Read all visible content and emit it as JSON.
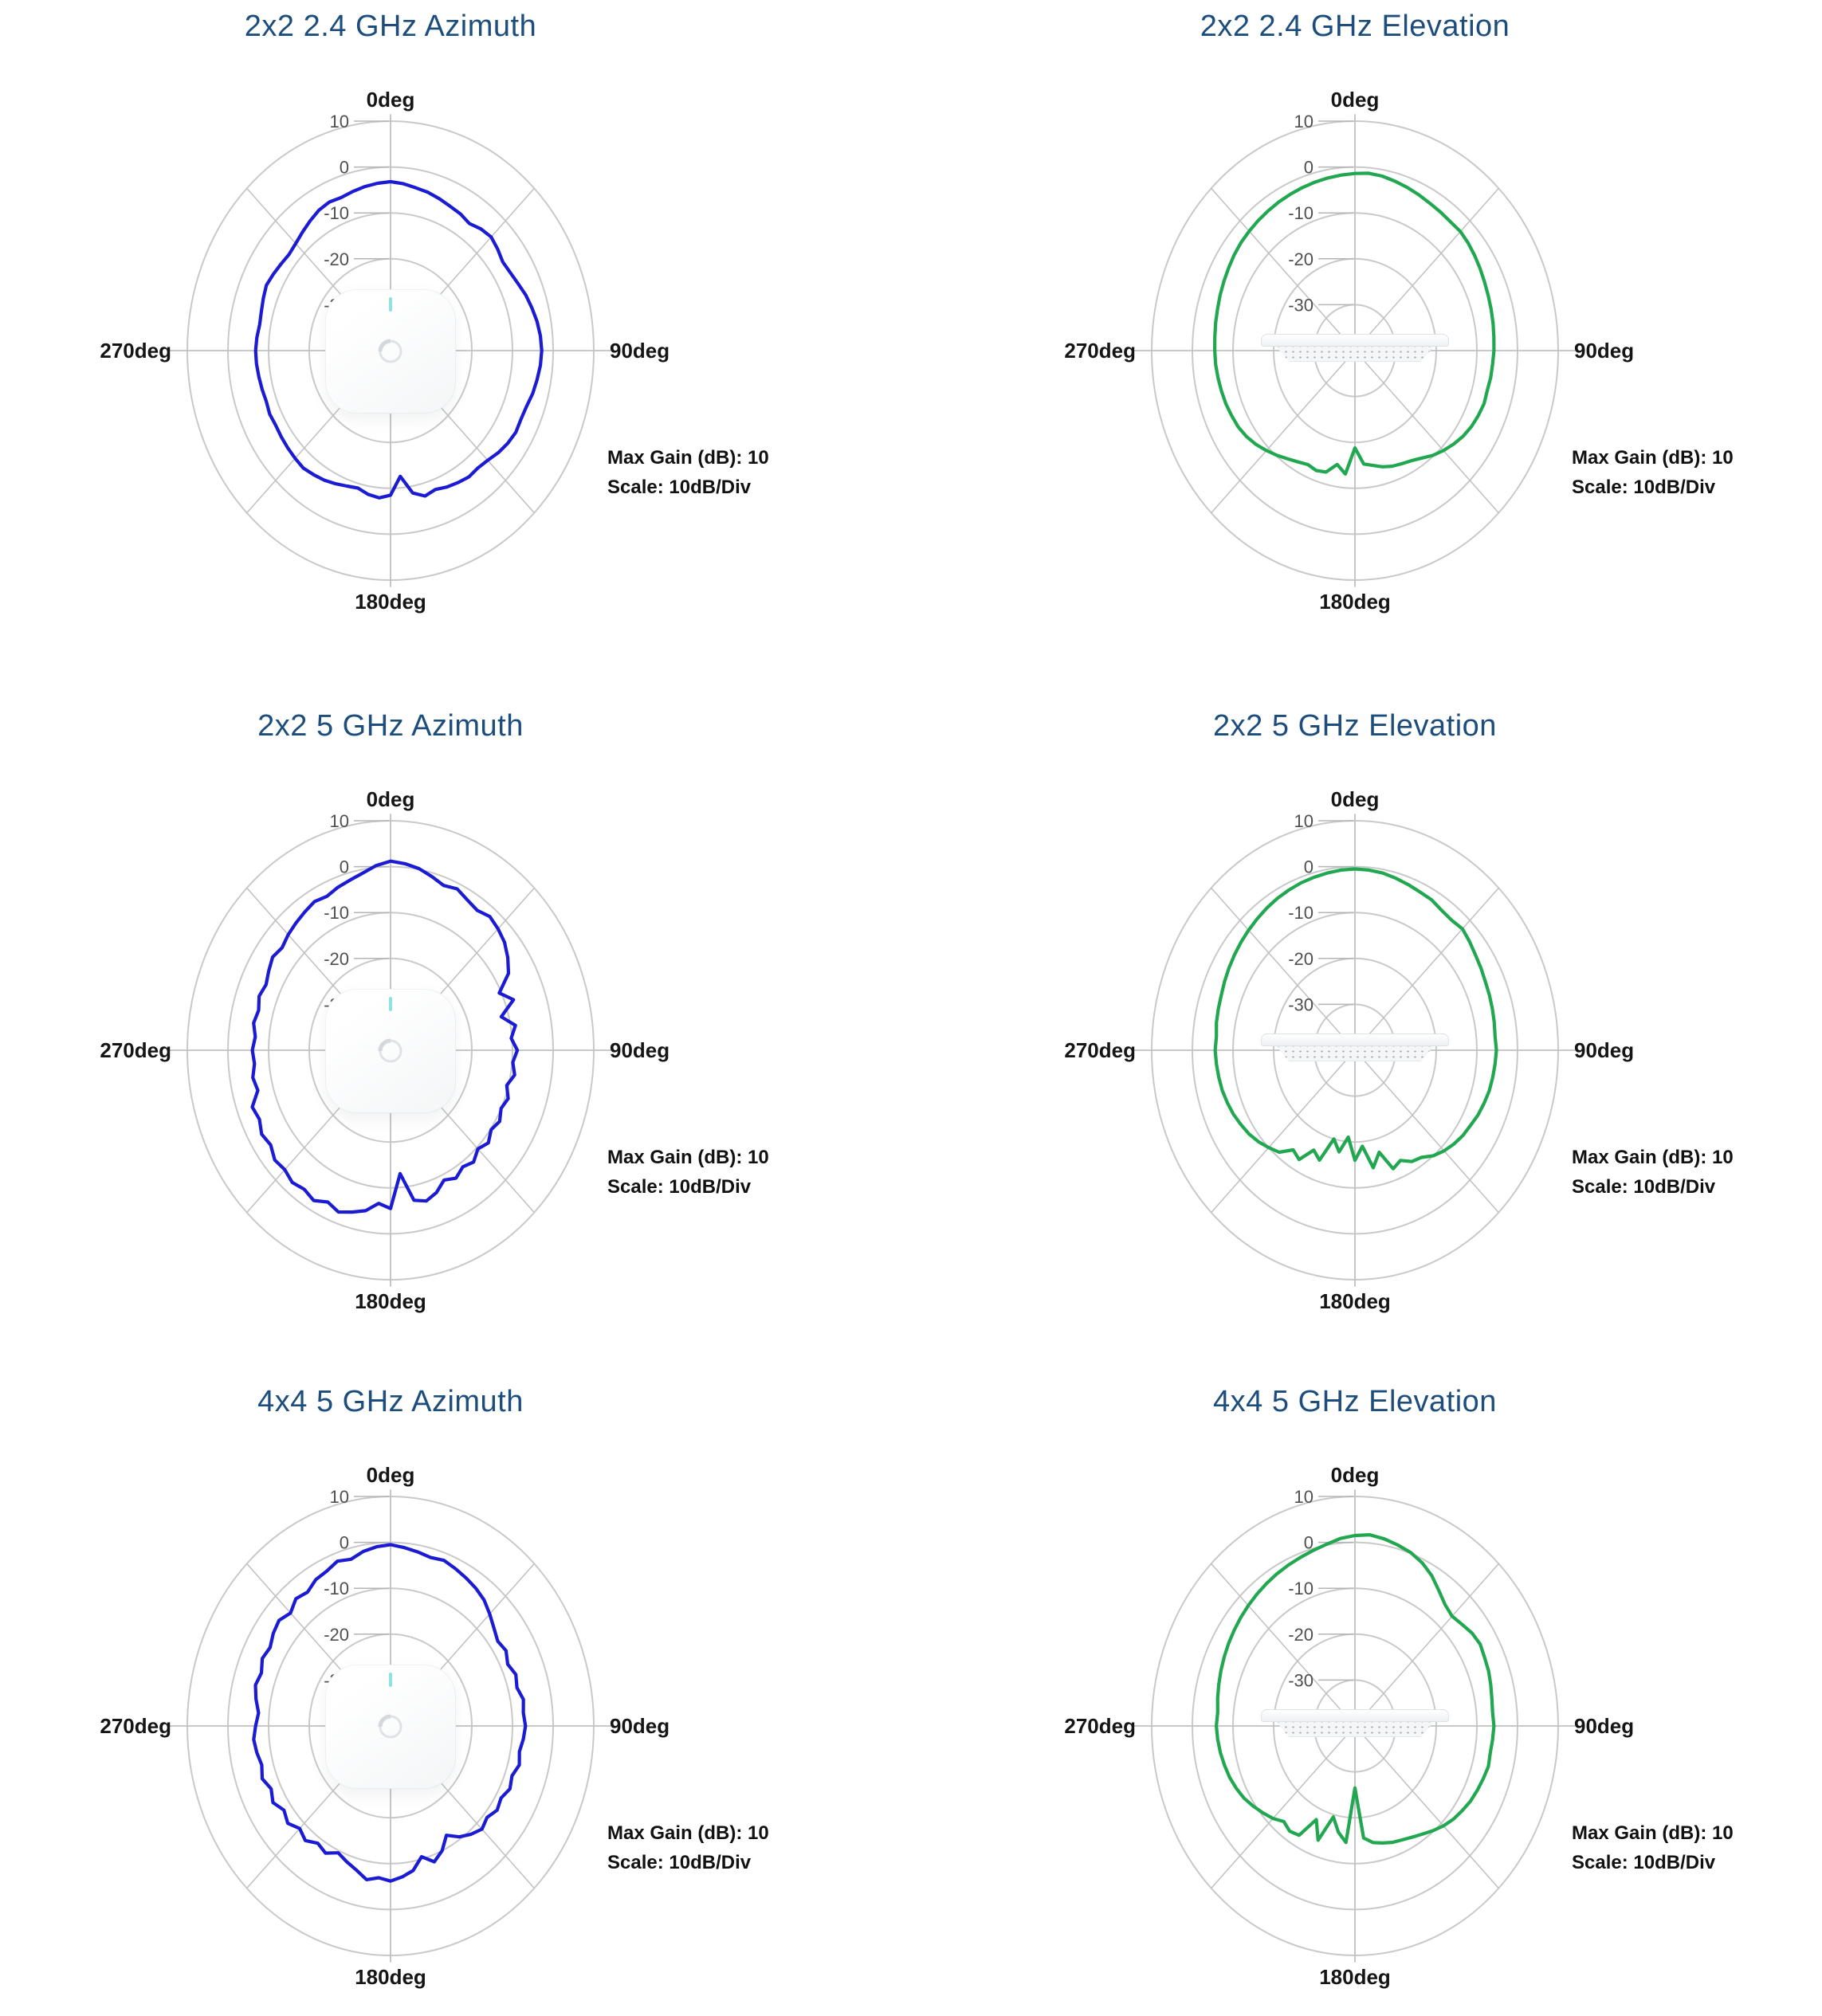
{
  "page": {
    "background": "#ffffff",
    "description": "Antenna radiation pattern sheet with six polar plots"
  },
  "colors": {
    "title": "#1c4d7c",
    "trace_blue": "#1b1bd4",
    "trace_green": "#21a74f",
    "grid_ring": "#c9c9c9",
    "grid_spoke": "#c0c0c0",
    "tick_text": "#4f4f4f",
    "deg_text": "#151515"
  },
  "axis": {
    "angle_labels": [
      "0deg",
      "90deg",
      "180deg",
      "270deg"
    ],
    "radial_ticks": [
      "10",
      "0",
      "-10",
      "-20",
      "-30"
    ]
  },
  "chart_data": {
    "type": "line",
    "subtype": "polar-radiation-pattern",
    "layout": "3 rows x 2 columns, azimuth (blue) left, elevation (green) right",
    "grid": "on",
    "radial_axis": {
      "min_dB": -40,
      "max_dB": 10,
      "ticks_dB": [
        10,
        0,
        -10,
        -20,
        -30
      ],
      "scale": "10dB/Div"
    },
    "angle_axis": {
      "labels": [
        "0deg",
        "90deg",
        "180deg",
        "270deg"
      ],
      "spokes_deg": 45
    },
    "angles_deg": [
      0,
      5,
      10,
      15,
      20,
      25,
      30,
      35,
      40,
      45,
      50,
      55,
      60,
      65,
      70,
      75,
      80,
      85,
      90,
      95,
      100,
      105,
      110,
      115,
      120,
      125,
      130,
      135,
      140,
      145,
      150,
      155,
      160,
      165,
      170,
      175,
      180,
      185,
      190,
      195,
      200,
      205,
      210,
      215,
      220,
      225,
      230,
      235,
      240,
      245,
      250,
      255,
      260,
      265,
      270,
      275,
      280,
      285,
      290,
      295,
      300,
      305,
      310,
      315,
      320,
      325,
      330,
      335,
      340,
      345,
      350,
      355
    ],
    "charts": [
      {
        "title": "2x2 2.4 GHz Azimuth",
        "orientation": "azimuth",
        "trace_color": "#1b1bd4",
        "center_image": "ap-top-view",
        "annotations": [
          "Max Gain (dB): 10",
          "Scale: 10dB/Div"
        ],
        "series_name": "Gain (dB)",
        "values_dB": [
          -3.2,
          -3.5,
          -4.0,
          -4.3,
          -4.8,
          -5.3,
          -5.6,
          -6.2,
          -5.4,
          -5.0,
          -5.6,
          -6.3,
          -6.0,
          -5.4,
          -4.6,
          -4.0,
          -3.4,
          -3.0,
          -2.8,
          -3.0,
          -3.4,
          -3.8,
          -4.4,
          -4.6,
          -4.4,
          -4.8,
          -5.4,
          -6.2,
          -6.6,
          -6.4,
          -6.8,
          -7.2,
          -7.8,
          -7.2,
          -8.5,
          -12.5,
          -8.5,
          -7.8,
          -8.2,
          -9.0,
          -8.6,
          -8.0,
          -7.4,
          -7.0,
          -6.6,
          -6.8,
          -7.0,
          -7.2,
          -7.4,
          -7.2,
          -7.5,
          -7.3,
          -7.1,
          -6.9,
          -6.8,
          -7.0,
          -7.3,
          -7.1,
          -6.7,
          -6.3,
          -6.7,
          -7.1,
          -7.4,
          -7.0,
          -6.3,
          -5.5,
          -4.7,
          -4.3,
          -4.5,
          -4.1,
          -3.7,
          -3.4
        ]
      },
      {
        "title": "2x2 2.4 GHz Elevation",
        "orientation": "elevation",
        "trace_color": "#21a74f",
        "center_image": "ap-side-view",
        "annotations": [
          "Max Gain (dB): 10",
          "Scale: 10dB/Div"
        ],
        "series_name": "Gain (dB)",
        "values_dB": [
          -1.4,
          -1.2,
          -1.4,
          -1.8,
          -2.2,
          -2.6,
          -3.0,
          -3.2,
          -3.4,
          -3.3,
          -3.6,
          -4.0,
          -4.4,
          -4.8,
          -5.1,
          -5.3,
          -5.5,
          -5.7,
          -5.8,
          -6.0,
          -6.1,
          -6.3,
          -6.2,
          -6.5,
          -6.9,
          -7.5,
          -8.3,
          -9.2,
          -10.2,
          -11.4,
          -12.3,
          -12.8,
          -13.2,
          -13.8,
          -14.6,
          -15.2,
          -18.8,
          -13.0,
          -14.8,
          -12.6,
          -12.2,
          -12.6,
          -12.0,
          -11.2,
          -10.2,
          -9.2,
          -8.2,
          -7.4,
          -6.8,
          -6.5,
          -6.2,
          -6.0,
          -5.8,
          -5.6,
          -5.5,
          -5.4,
          -5.2,
          -5.0,
          -4.7,
          -4.4,
          -4.1,
          -3.7,
          -3.4,
          -3.2,
          -3.0,
          -2.8,
          -2.6,
          -2.4,
          -2.2,
          -2.0,
          -1.8,
          -1.6
        ]
      },
      {
        "title": "2x2 5 GHz Azimuth",
        "orientation": "azimuth",
        "trace_color": "#1b1bd4",
        "center_image": "ap-top-view",
        "annotations": [
          "Max Gain (dB): 10",
          "Scale: 10dB/Div"
        ],
        "series_name": "Gain (dB)",
        "values_dB": [
          1.2,
          0.8,
          0.2,
          -0.8,
          -1.8,
          -1.2,
          -2.2,
          -2.8,
          -2.0,
          -2.6,
          -3.4,
          -4.8,
          -6.5,
          -10.5,
          -7.8,
          -11.8,
          -8.8,
          -10.2,
          -8.8,
          -9.8,
          -9.0,
          -10.4,
          -9.2,
          -10.0,
          -9.0,
          -9.8,
          -8.6,
          -9.6,
          -8.2,
          -9.0,
          -7.8,
          -8.8,
          -7.0,
          -6.0,
          -6.8,
          -13.0,
          -5.5,
          -6.5,
          -4.5,
          -3.5,
          -2.5,
          -3.5,
          -2.2,
          -3.0,
          -2.4,
          -3.2,
          -2.8,
          -4.0,
          -3.4,
          -4.4,
          -3.8,
          -6.2,
          -5.6,
          -6.4,
          -6.0,
          -6.6,
          -5.8,
          -6.4,
          -5.6,
          -6.2,
          -5.4,
          -4.6,
          -5.2,
          -4.4,
          -3.8,
          -3.2,
          -2.6,
          -3.0,
          -2.2,
          -1.6,
          -0.8,
          0.4
        ]
      },
      {
        "title": "2x2 5 GHz Elevation",
        "orientation": "elevation",
        "trace_color": "#21a74f",
        "center_image": "ap-side-view",
        "annotations": [
          "Max Gain (dB): 10",
          "Scale: 10dB/Div"
        ],
        "series_name": "Gain (dB)",
        "values_dB": [
          -0.5,
          -0.6,
          -0.8,
          -1.2,
          -1.6,
          -2.0,
          -2.2,
          -2.8,
          -3.0,
          -2.6,
          -3.2,
          -3.8,
          -4.2,
          -4.6,
          -4.8,
          -5.0,
          -5.2,
          -5.4,
          -5.2,
          -5.4,
          -5.6,
          -5.8,
          -6.2,
          -6.6,
          -7.2,
          -7.6,
          -8.2,
          -9.0,
          -10.0,
          -11.5,
          -12.0,
          -13.5,
          -12.5,
          -17.0,
          -14.0,
          -19.0,
          -16.0,
          -21.0,
          -17.5,
          -20.0,
          -14.5,
          -16.0,
          -12.5,
          -13.5,
          -11.0,
          -10.0,
          -9.0,
          -8.2,
          -7.6,
          -7.0,
          -6.6,
          -6.2,
          -6.0,
          -5.8,
          -5.6,
          -5.8,
          -5.4,
          -5.2,
          -5.0,
          -4.6,
          -4.2,
          -3.8,
          -3.4,
          -3.0,
          -2.6,
          -2.2,
          -1.8,
          -1.5,
          -1.2,
          -1.0,
          -0.8,
          -0.6
        ]
      },
      {
        "title": "4x4 5 GHz Azimuth",
        "orientation": "azimuth",
        "trace_color": "#1b1bd4",
        "center_image": "ap-top-view",
        "annotations": [
          "Max Gain (dB): 10",
          "Scale: 10dB/Div"
        ],
        "series_name": "Gain (dB)",
        "values_dB": [
          -0.5,
          -1.0,
          -1.5,
          -2.0,
          -1.6,
          -2.2,
          -2.8,
          -3.4,
          -4.2,
          -5.5,
          -6.8,
          -7.8,
          -7.2,
          -8.2,
          -7.2,
          -7.8,
          -6.8,
          -7.2,
          -6.8,
          -7.2,
          -7.8,
          -7.2,
          -8.2,
          -7.6,
          -8.6,
          -8.0,
          -9.0,
          -8.2,
          -9.2,
          -10.5,
          -12.5,
          -10.0,
          -8.5,
          -10.5,
          -8.0,
          -7.0,
          -6.2,
          -6.8,
          -6.0,
          -7.5,
          -8.5,
          -9.5,
          -8.0,
          -8.8,
          -7.4,
          -8.4,
          -7.0,
          -8.0,
          -6.6,
          -7.6,
          -6.4,
          -7.2,
          -6.6,
          -6.2,
          -6.8,
          -7.4,
          -6.4,
          -5.6,
          -6.2,
          -5.2,
          -5.8,
          -4.8,
          -4.2,
          -5.2,
          -3.8,
          -4.4,
          -3.2,
          -2.8,
          -1.8,
          -2.4,
          -1.4,
          -0.8
        ]
      },
      {
        "title": "4x4 5 GHz Elevation",
        "orientation": "elevation",
        "trace_color": "#21a74f",
        "center_image": "ap-side-view",
        "annotations": [
          "Max Gain (dB): 10",
          "Scale: 10dB/Div"
        ],
        "series_name": "Gain (dB)",
        "values_dB": [
          1.5,
          1.8,
          1.4,
          0.8,
          0.2,
          -0.8,
          -2.2,
          -4.0,
          -5.5,
          -6.2,
          -5.6,
          -4.8,
          -4.4,
          -4.8,
          -5.0,
          -5.4,
          -5.8,
          -6.0,
          -5.8,
          -6.0,
          -6.2,
          -6.0,
          -6.4,
          -6.8,
          -7.2,
          -7.8,
          -8.4,
          -9.2,
          -10.2,
          -11.2,
          -12.0,
          -12.6,
          -13.0,
          -13.6,
          -14.2,
          -15.5,
          -26.5,
          -14.5,
          -16.5,
          -19.5,
          -13.5,
          -17.5,
          -12.5,
          -12.0,
          -12.8,
          -11.5,
          -10.5,
          -9.5,
          -8.5,
          -7.8,
          -7.2,
          -6.8,
          -6.4,
          -6.1,
          -5.9,
          -6.1,
          -5.7,
          -5.3,
          -4.9,
          -4.5,
          -4.1,
          -3.7,
          -3.3,
          -2.9,
          -2.5,
          -2.1,
          -1.7,
          -1.3,
          -0.9,
          -0.4,
          0.2,
          1.0
        ]
      }
    ]
  }
}
